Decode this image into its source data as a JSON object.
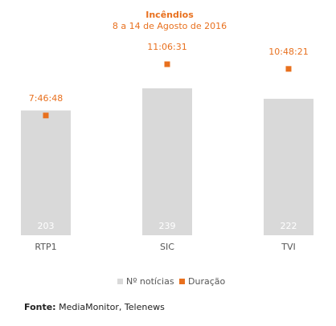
{
  "chart_data": {
    "type": "bar",
    "title": "Incêndios",
    "subtitle": "8 a 14 de Agosto de 2016",
    "categories": [
      "RTP1",
      "SIC",
      "TVI"
    ],
    "series": [
      {
        "name": "Nº notícias",
        "type": "bar",
        "values": [
          203,
          239,
          222
        ],
        "data_labels": [
          "203",
          "239",
          "222"
        ],
        "color": "#d9d9d9"
      },
      {
        "name": "Duração",
        "type": "scatter",
        "values_seconds": [
          28008,
          39991,
          38901
        ],
        "data_labels": [
          "7:46:48",
          "11:06:31",
          "10:48:21"
        ],
        "color": "#e8701e"
      }
    ],
    "legend": {
      "position": "bottom",
      "entries": [
        "Nº notícias",
        "Duração"
      ]
    },
    "grid": false,
    "colors": {
      "title": "#e8701e",
      "bar": "#d9d9d9",
      "marker": "#e8701e",
      "tick": "#555555",
      "bar_label": "#ffffff"
    }
  },
  "source": {
    "label": "Fonte:",
    "text": "MediaMonitor, Telenews"
  }
}
